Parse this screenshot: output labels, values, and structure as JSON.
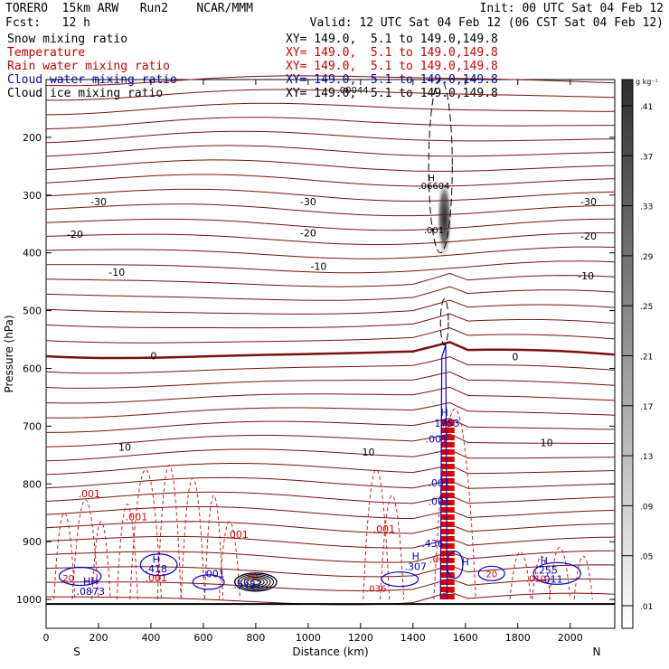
{
  "header": {
    "left1": "TORERO  15km ARW   Run2    NCAR/MMM",
    "left2": "Fcst:   12 h",
    "right1": "Init: 00 UTC Sat 04 Feb 12",
    "right2": "Valid: 12 UTC Sat 04 Feb 12 (06 CST Sat 04 Feb 12)"
  },
  "fields": [
    {
      "name": "Snow mixing ratio",
      "xy": "XY= 149.0,  5.1 to 149.0,149.8",
      "color": "#000000"
    },
    {
      "name": "Temperature",
      "xy": "XY= 149.0,  5.1 to 149.0,149.8",
      "color": "#cc0000"
    },
    {
      "name": "Rain water mixing ratio",
      "xy": "XY= 149.0,  5.1 to 149.0,149.8",
      "color": "#cc0000"
    },
    {
      "name": "Cloud water mixing ratio",
      "xy": "XY= 149.0,  5.1 to 149.0,149.8",
      "color": "#0000cc"
    },
    {
      "name": "Cloud ice mixing ratio",
      "xy": "XY= 149.0,  5.1 to 149.0,149.8",
      "color": "#000000"
    }
  ],
  "chart_data": {
    "type": "cross-section",
    "xlabel": "Distance (km)",
    "ylabel": "Pressure (hPa)",
    "x_ticks": [
      0,
      200,
      400,
      600,
      800,
      1000,
      1200,
      1400,
      1600,
      1800,
      2000
    ],
    "xlim": [
      0,
      2170
    ],
    "y_ticks": [
      200,
      300,
      400,
      500,
      600,
      700,
      800,
      900,
      1000
    ],
    "ylim": [
      100,
      1050
    ],
    "end_labels": {
      "left": "S",
      "right": "N"
    },
    "colorbar": {
      "unit": "g kg⁻¹",
      "ticks": [
        ".01",
        ".05",
        ".09",
        ".13",
        ".17",
        ".21",
        ".25",
        ".29",
        ".33",
        ".37",
        ".41"
      ]
    },
    "temperature_contours": [
      {
        "label": "-30",
        "at": [
          [
            200,
            311
          ],
          [
            1000,
            311
          ],
          [
            2070,
            311
          ]
        ]
      },
      {
        "label": "-20",
        "at": [
          [
            110,
            368
          ],
          [
            1000,
            365
          ],
          [
            2070,
            371
          ]
        ]
      },
      {
        "label": "-10",
        "at": [
          [
            270,
            433
          ],
          [
            1040,
            423
          ],
          [
            2060,
            440
          ]
        ]
      },
      {
        "label": "0",
        "at": [
          [
            410,
            578
          ],
          [
            1790,
            580
          ]
        ]
      },
      {
        "label": "10",
        "at": [
          [
            300,
            736
          ],
          [
            1230,
            745
          ],
          [
            1910,
            728
          ]
        ]
      }
    ],
    "rain_labels": [
      {
        "label": ".001",
        "at": [
          [
            165,
            817
          ],
          [
            345,
            857
          ],
          [
            730,
            887
          ],
          [
            1290,
            878
          ],
          [
            420,
            962
          ],
          [
            1505,
            930
          ]
        ]
      }
    ],
    "cloud_water_labels": [
      {
        "label": "H",
        "at": [
          [
            420,
            930
          ],
          [
            1410,
            925
          ],
          [
            1600,
            935
          ],
          [
            1900,
            933
          ],
          [
            1520,
            676
          ]
        ]
      },
      {
        "label": ".418",
        "at": [
          [
            420,
            947
          ]
        ]
      },
      {
        "label": ".307",
        "at": [
          [
            1410,
            943
          ]
        ]
      },
      {
        "label": ".255",
        "at": [
          [
            1910,
            949
          ]
        ]
      },
      {
        "label": ".011",
        "at": [
          [
            1930,
            965
          ]
        ]
      },
      {
        "label": ".001",
        "at": [
          [
            640,
            955
          ],
          [
            1490,
            722
          ],
          [
            1500,
            798
          ],
          [
            1500,
            830
          ]
        ]
      },
      {
        "label": ".436",
        "at": [
          [
            1475,
            903
          ]
        ]
      },
      {
        "label": "1753",
        "at": [
          [
            1530,
            695
          ]
        ]
      },
      {
        "label": ".5437",
        "at": [
          [
            770,
            974
          ]
        ]
      },
      {
        "label": "HH",
        "at": [
          [
            170,
            968
          ]
        ]
      },
      {
        "label": ".0873",
        "at": [
          [
            170,
            986
          ]
        ]
      }
    ],
    "cloud_ice_labels": [
      {
        "label": "H",
        "at": [
          [
            1470,
            270
          ]
        ]
      },
      {
        "label": ".06604",
        "at": [
          [
            1480,
            283
          ]
        ]
      },
      {
        "label": ".001",
        "at": [
          [
            1480,
            360
          ]
        ]
      },
      {
        "label": ".00044",
        "at": [
          [
            1170,
            117
          ]
        ]
      }
    ],
    "temp_red_labels": [
      {
        "label": ".036",
        "at": [
          [
            1260,
            980
          ]
        ]
      },
      {
        "label": ".010",
        "at": [
          [
            1870,
            963
          ]
        ]
      },
      {
        "label": "20",
        "at": [
          [
            85,
            962
          ]
        ]
      },
      {
        "label": ".20",
        "at": [
          [
            780,
            960
          ]
        ]
      },
      {
        "label": "20",
        "at": [
          [
            1700,
            955
          ]
        ]
      }
    ]
  }
}
